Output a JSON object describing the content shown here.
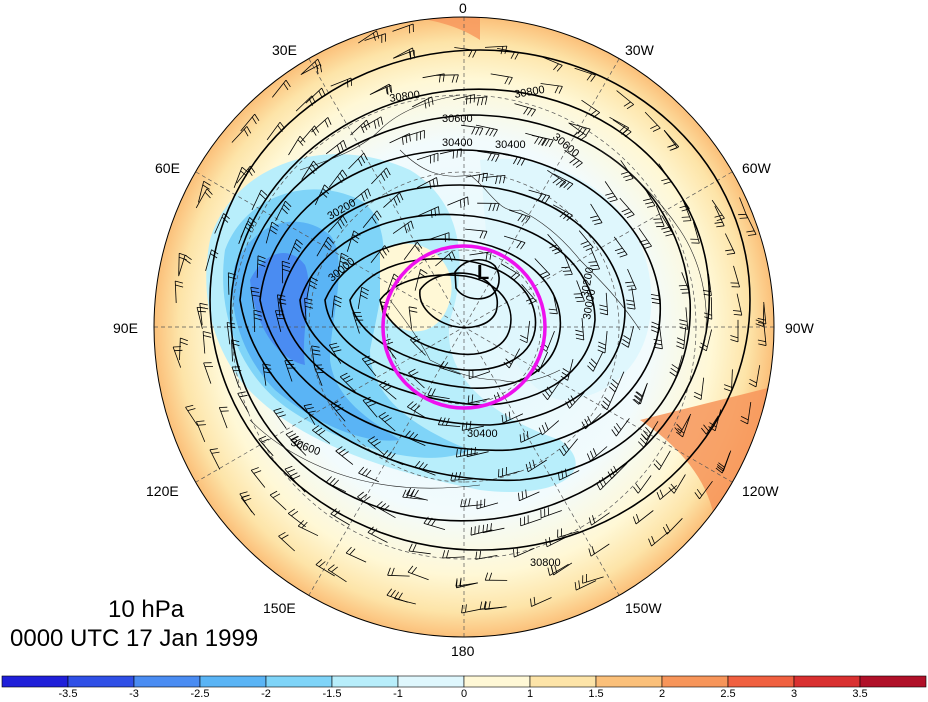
{
  "map": {
    "longitude_labels": {
      "lon_0": "0",
      "lon_30w": "30W",
      "lon_60w": "60W",
      "lon_90w": "90W",
      "lon_120w": "120W",
      "lon_150w": "150W",
      "lon_180": "180",
      "lon_150e": "150E",
      "lon_120e": "120E",
      "lon_90e": "90E",
      "lon_60e": "60E",
      "lon_30e": "30E"
    },
    "contour_labels": [
      "30800",
      "30600",
      "30400",
      "30200",
      "30000",
      "30800",
      "30600",
      "30400",
      "30200",
      "30000",
      "30600",
      "30400",
      "30800"
    ],
    "low_marker": "L",
    "highlight_circle_color": "#ee10ee",
    "caption": {
      "level": "10 hPa",
      "time": "0000 UTC 17 Jan 1999"
    }
  },
  "colorbar": {
    "colors": [
      "#1f1fd9",
      "#2f4fe6",
      "#4a8cf2",
      "#5ab4f5",
      "#7fd4f8",
      "#b8eefb",
      "#dff7fd",
      "#fff8d6",
      "#fde4a8",
      "#fbc07a",
      "#f7955a",
      "#f06040",
      "#d93030",
      "#b01028"
    ],
    "tick_labels": [
      "-3.5",
      "-3",
      "-2.5",
      "-2",
      "-1.5",
      "-1",
      "0",
      "1",
      "1.5",
      "2",
      "2.5",
      "3",
      "3.5"
    ]
  }
}
